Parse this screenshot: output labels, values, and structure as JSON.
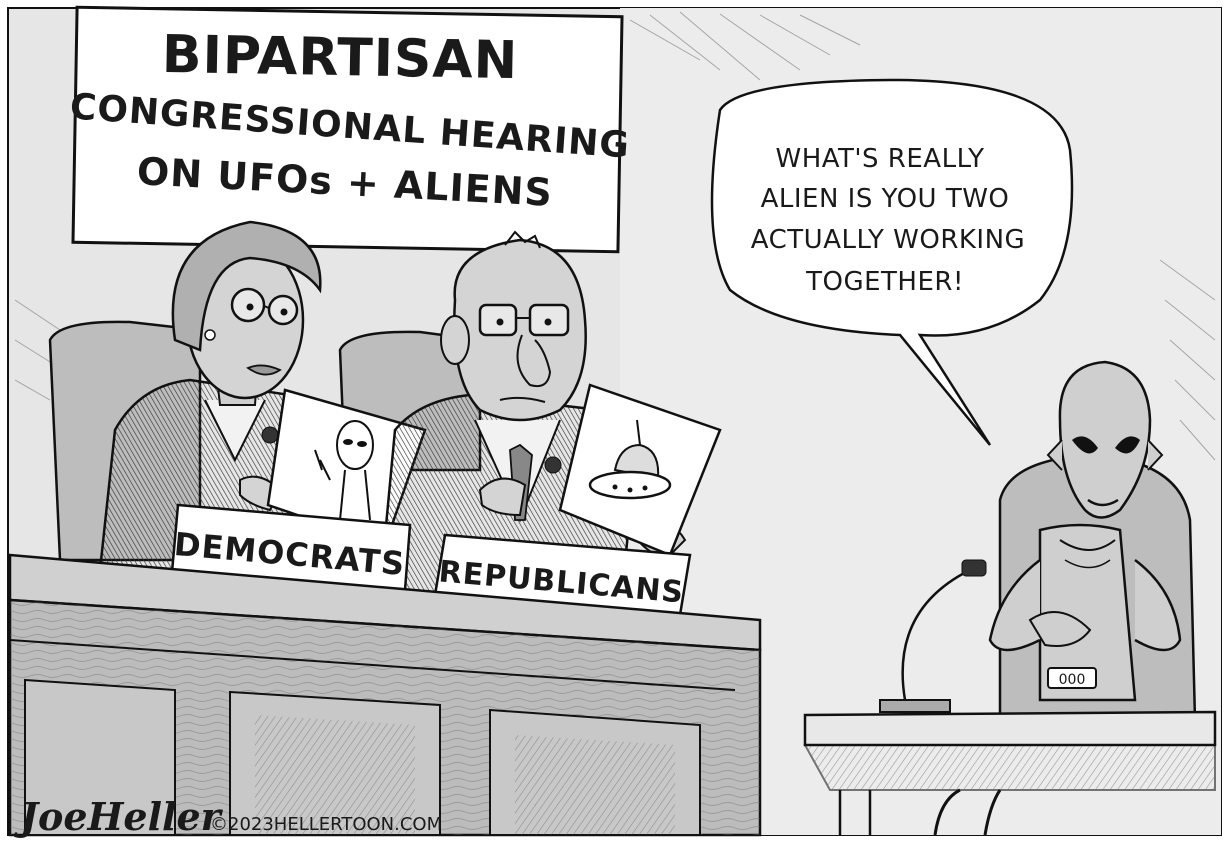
{
  "banner": {
    "line1": "BIPARTISAN",
    "line2": "CONGRESSIONAL HEARING",
    "line3": "ON UFOs + ALIENS"
  },
  "speech_bubble": {
    "line1": "WHAT'S REALLY",
    "line2": "ALIEN IS YOU TWO",
    "line3": "ACTUALLY WORKING",
    "line4": "TOGETHER!"
  },
  "nameplates": {
    "left": "DEMOCRATS",
    "right": "REPUBLICANS"
  },
  "alien_badge": "000",
  "signature": {
    "artist": "JoeHeller",
    "credit": "©2023HELLERTOON.COM"
  }
}
